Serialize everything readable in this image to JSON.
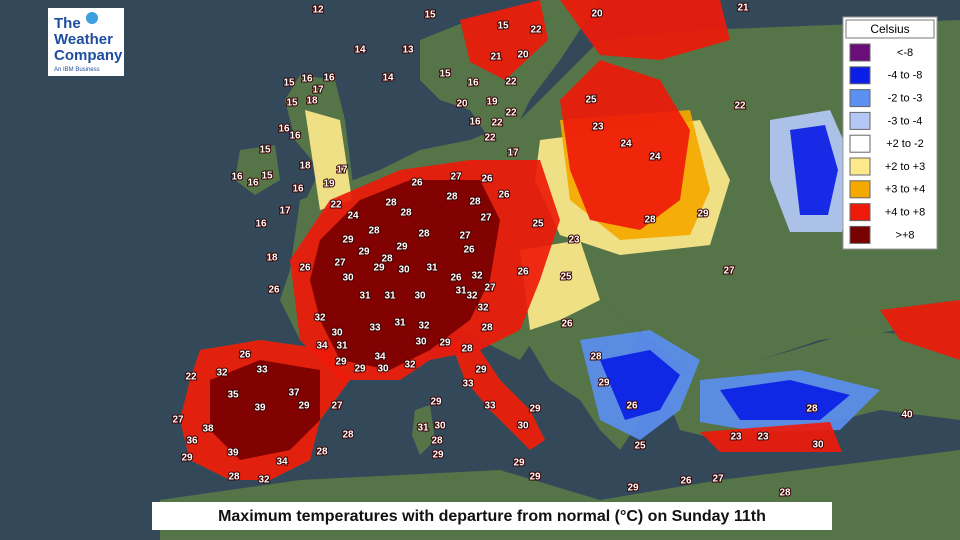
{
  "logo": {
    "lines": [
      "The",
      "Weather",
      "Company"
    ],
    "tagline": "An IBM Business"
  },
  "legend": {
    "title": "Celsius",
    "entries": [
      {
        "label": "<-8",
        "color": "#6a0f7a"
      },
      {
        "label": "-4 to -8",
        "color": "#0a1ee6"
      },
      {
        "label": "-2 to -3",
        "color": "#5b8ff0"
      },
      {
        "label": "-3 to -4",
        "color": "#b4c8f6"
      },
      {
        "label": "+2 to -2",
        "color": "#ffffff"
      },
      {
        "label": "+2 to +3",
        "color": "#fde98c"
      },
      {
        "label": "+3 to +4",
        "color": "#f5a800"
      },
      {
        "label": "+4 to +8",
        "color": "#ee1a0a"
      },
      {
        "label": ">+8",
        "color": "#780000"
      }
    ]
  },
  "caption": "Maximum temperatures with departure from normal (°C) on Sunday 11th",
  "map": {
    "temperatures": [
      12,
      15,
      20,
      15,
      13,
      14,
      14,
      15,
      16,
      21,
      20,
      22,
      22,
      20,
      19,
      22,
      22,
      17,
      16,
      22,
      15,
      16,
      17,
      16,
      15,
      18,
      16,
      16,
      15,
      16,
      16,
      15,
      18,
      16,
      19,
      17,
      16,
      17,
      22,
      24,
      26,
      27,
      26,
      28,
      28,
      28,
      28,
      27,
      26,
      28,
      28,
      29,
      28,
      29,
      29,
      27,
      27,
      26,
      26,
      30,
      29,
      30,
      31,
      26,
      31,
      32,
      31,
      31,
      30,
      32,
      27,
      32,
      33,
      31,
      32,
      30,
      31,
      34,
      30,
      29,
      32,
      28,
      34,
      29,
      30,
      32,
      29,
      26,
      18,
      26,
      32,
      33,
      35,
      39,
      37,
      38,
      36,
      39,
      34,
      32,
      28,
      29,
      27,
      29,
      27,
      28,
      28,
      22,
      28,
      29,
      33,
      33,
      29,
      31,
      30,
      28,
      29,
      30,
      29,
      29,
      29,
      25,
      23,
      24,
      24,
      22,
      25,
      26,
      25,
      23,
      29,
      28,
      27,
      26,
      28,
      29,
      26,
      25,
      30,
      28,
      23,
      23,
      27,
      26,
      28,
      29,
      40,
      21
    ]
  }
}
